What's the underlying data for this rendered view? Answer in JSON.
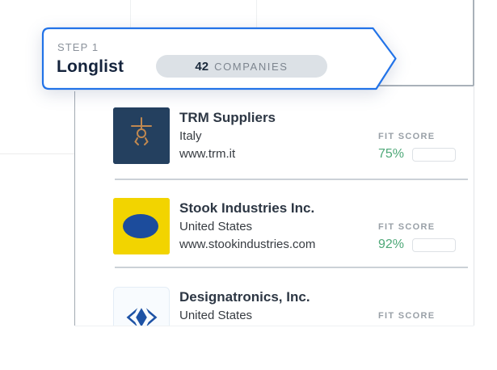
{
  "banner": {
    "step_label": "STEP 1",
    "title": "Longlist",
    "count": "42",
    "count_label": "COMPANIES",
    "border_color": "#2273e8",
    "pill_bg": "#dce1e6"
  },
  "list": {
    "fit_score_label": "FIT SCORE",
    "colors": {
      "fit_green": "#4ea878",
      "bar_track": "#ccd1d6"
    },
    "companies": [
      {
        "name": "TRM Suppliers",
        "country": "Italy",
        "website": "www.trm.it",
        "fit_percent": "75%",
        "fit_value": 75,
        "logo_icon": "gripper-icon",
        "logo_bg": "#24405f",
        "logo_fg": "#c08850"
      },
      {
        "name": "Stook Industries Inc.",
        "country": "United States",
        "website": "www.stookindustries.com",
        "fit_percent": "92%",
        "fit_value": 92,
        "logo_icon": "ellipse-icon",
        "logo_bg": "#f2d400",
        "logo_fg": "#1c4c9c"
      },
      {
        "name": "Designatronics, Inc.",
        "country": "United States",
        "fit_value": 0,
        "logo_icon": "diamond-chevrons-icon",
        "logo_bg": "#f8fbfe",
        "logo_fg": "#1d52a5"
      }
    ]
  }
}
